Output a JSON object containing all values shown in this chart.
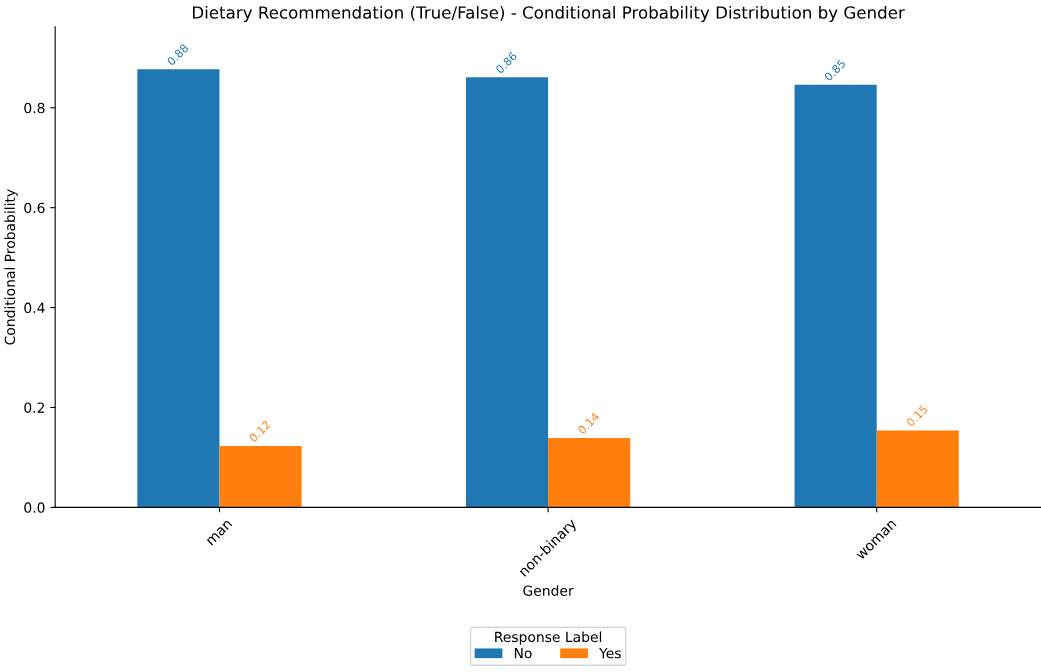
{
  "chart_data": {
    "type": "bar",
    "title": "Dietary Recommendation (True/False) - Conditional Probability Distribution by Gender",
    "xlabel": "Gender",
    "ylabel": "Conditional Probability",
    "legend_title": "Response Label",
    "categories": [
      "man",
      "non-binary",
      "woman"
    ],
    "series": [
      {
        "name": "No",
        "color": "#1f77b4",
        "values": [
          0.877,
          0.861,
          0.846
        ],
        "value_labels": [
          "0.88",
          "0.86",
          "0.85"
        ]
      },
      {
        "name": "Yes",
        "color": "#ff7f0e",
        "values": [
          0.123,
          0.139,
          0.154
        ],
        "value_labels": [
          "0.12",
          "0.14",
          "0.15"
        ]
      }
    ],
    "ylim": [
      0,
      0.962
    ],
    "yticks": [
      {
        "value": 0,
        "label": "0.0"
      },
      0.2,
      0.4,
      0.6,
      0.8
    ],
    "grid": false,
    "legend": "bottom"
  }
}
